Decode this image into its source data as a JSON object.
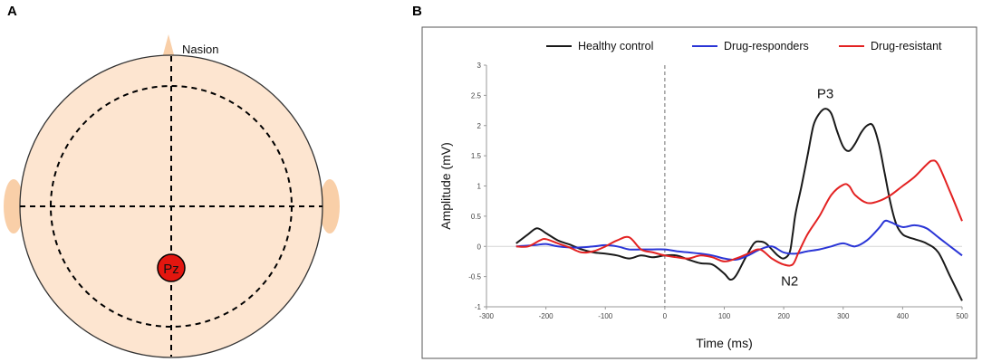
{
  "panel_a": {
    "label": "A",
    "nasion_label": "Nasion",
    "electrode_label": "Pz",
    "colors": {
      "scalp": "#fde5d0",
      "ear": "#f9cfa8",
      "electrode": "#e3160f"
    }
  },
  "panel_b": {
    "label": "B"
  },
  "chart_data": {
    "type": "line",
    "title": "",
    "xlabel": "Time (ms)",
    "ylabel": "Amplitude (mV)",
    "xlim": [
      -300,
      500
    ],
    "ylim": [
      -1,
      3
    ],
    "xticks": [
      -300,
      -200,
      -100,
      0,
      100,
      200,
      300,
      400,
      500
    ],
    "yticks": [
      -1,
      -0.5,
      0,
      0.5,
      1,
      1.5,
      2,
      2.5,
      3
    ],
    "xtick_labels": [
      "-300",
      "-200",
      "-100",
      "0",
      "100",
      "200",
      "300",
      "400",
      "500"
    ],
    "ytick_labels": [
      "-1",
      "-0.5",
      "0",
      "0.5",
      "1",
      "1.5",
      "2",
      "2.5",
      "3"
    ],
    "legend_position": "top",
    "annotations": [
      {
        "text": "P3",
        "x": 270,
        "y": 2.45
      },
      {
        "text": "N2",
        "x": 210,
        "y": -0.65
      }
    ],
    "series": [
      {
        "name": "Healthy control",
        "color": "#1a1a1a",
        "x": [
          -250,
          -230,
          -215,
          -200,
          -180,
          -160,
          -140,
          -120,
          -100,
          -80,
          -60,
          -40,
          -20,
          0,
          20,
          40,
          60,
          80,
          100,
          110,
          120,
          135,
          150,
          160,
          170,
          180,
          190,
          200,
          210,
          215,
          220,
          230,
          240,
          250,
          260,
          270,
          280,
          290,
          300,
          310,
          320,
          330,
          340,
          350,
          360,
          370,
          380,
          390,
          400,
          410,
          420,
          440,
          460,
          480,
          500
        ],
        "y": [
          0.05,
          0.2,
          0.3,
          0.22,
          0.1,
          0.03,
          -0.05,
          -0.1,
          -0.12,
          -0.15,
          -0.2,
          -0.15,
          -0.18,
          -0.15,
          -0.15,
          -0.22,
          -0.28,
          -0.3,
          -0.45,
          -0.55,
          -0.48,
          -0.2,
          0.05,
          0.08,
          0.05,
          -0.05,
          -0.15,
          -0.2,
          -0.1,
          0.2,
          0.55,
          1.0,
          1.5,
          2.0,
          2.2,
          2.28,
          2.2,
          1.9,
          1.65,
          1.58,
          1.7,
          1.88,
          2.0,
          2.0,
          1.7,
          1.2,
          0.7,
          0.35,
          0.2,
          0.15,
          0.12,
          0.05,
          -0.1,
          -0.5,
          -0.9
        ]
      },
      {
        "name": "Drug-responders",
        "color": "#2a35d6",
        "x": [
          -250,
          -220,
          -200,
          -180,
          -150,
          -120,
          -100,
          -80,
          -60,
          -40,
          -20,
          0,
          20,
          40,
          60,
          80,
          100,
          120,
          140,
          160,
          180,
          200,
          220,
          240,
          260,
          280,
          300,
          320,
          340,
          360,
          370,
          380,
          400,
          420,
          440,
          460,
          480,
          500
        ],
        "y": [
          0.0,
          0.02,
          0.04,
          0.0,
          -0.02,
          0.0,
          0.02,
          0.0,
          -0.05,
          -0.05,
          -0.05,
          -0.05,
          -0.08,
          -0.1,
          -0.12,
          -0.15,
          -0.2,
          -0.22,
          -0.15,
          -0.05,
          0.0,
          -0.1,
          -0.12,
          -0.08,
          -0.05,
          0.0,
          0.05,
          0.0,
          0.1,
          0.3,
          0.42,
          0.4,
          0.32,
          0.35,
          0.3,
          0.15,
          0.0,
          -0.15
        ]
      },
      {
        "name": "Drug-resistant",
        "color": "#e32222",
        "x": [
          -250,
          -230,
          -210,
          -200,
          -180,
          -160,
          -140,
          -120,
          -100,
          -80,
          -60,
          -40,
          -20,
          0,
          20,
          40,
          60,
          80,
          100,
          120,
          140,
          160,
          180,
          200,
          215,
          225,
          240,
          260,
          280,
          300,
          310,
          320,
          340,
          360,
          380,
          400,
          420,
          440,
          450,
          460,
          480,
          500
        ],
        "y": [
          0.0,
          0.0,
          0.1,
          0.12,
          0.05,
          -0.02,
          -0.1,
          -0.08,
          0.0,
          0.1,
          0.15,
          -0.05,
          -0.1,
          -0.15,
          -0.18,
          -0.2,
          -0.15,
          -0.18,
          -0.25,
          -0.2,
          -0.12,
          -0.05,
          -0.2,
          -0.3,
          -0.3,
          -0.1,
          0.2,
          0.5,
          0.85,
          1.02,
          1.0,
          0.85,
          0.72,
          0.75,
          0.85,
          1.0,
          1.15,
          1.35,
          1.42,
          1.35,
          0.9,
          0.42
        ]
      }
    ]
  }
}
